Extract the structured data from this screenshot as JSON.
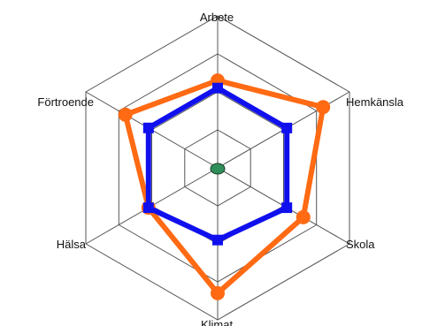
{
  "chart_data": {
    "type": "radar",
    "axes": [
      "Arbete",
      "Hemkänsla",
      "Skola",
      "Klimat",
      "Hälsa",
      "Förtroende"
    ],
    "scale": {
      "min": 0,
      "max": 4,
      "rings": [
        1,
        2,
        3,
        4
      ]
    },
    "series": [
      {
        "color": "#ff6a13",
        "marker": "circle",
        "values": [
          2.3,
          3.2,
          2.6,
          3.3,
          2.1,
          2.8
        ]
      },
      {
        "color": "#1010ee",
        "marker": "square",
        "values": [
          2.1,
          2.1,
          2.1,
          1.9,
          2.1,
          2.1
        ]
      }
    ],
    "center_marker": {
      "color": "#2f8f5a"
    }
  }
}
